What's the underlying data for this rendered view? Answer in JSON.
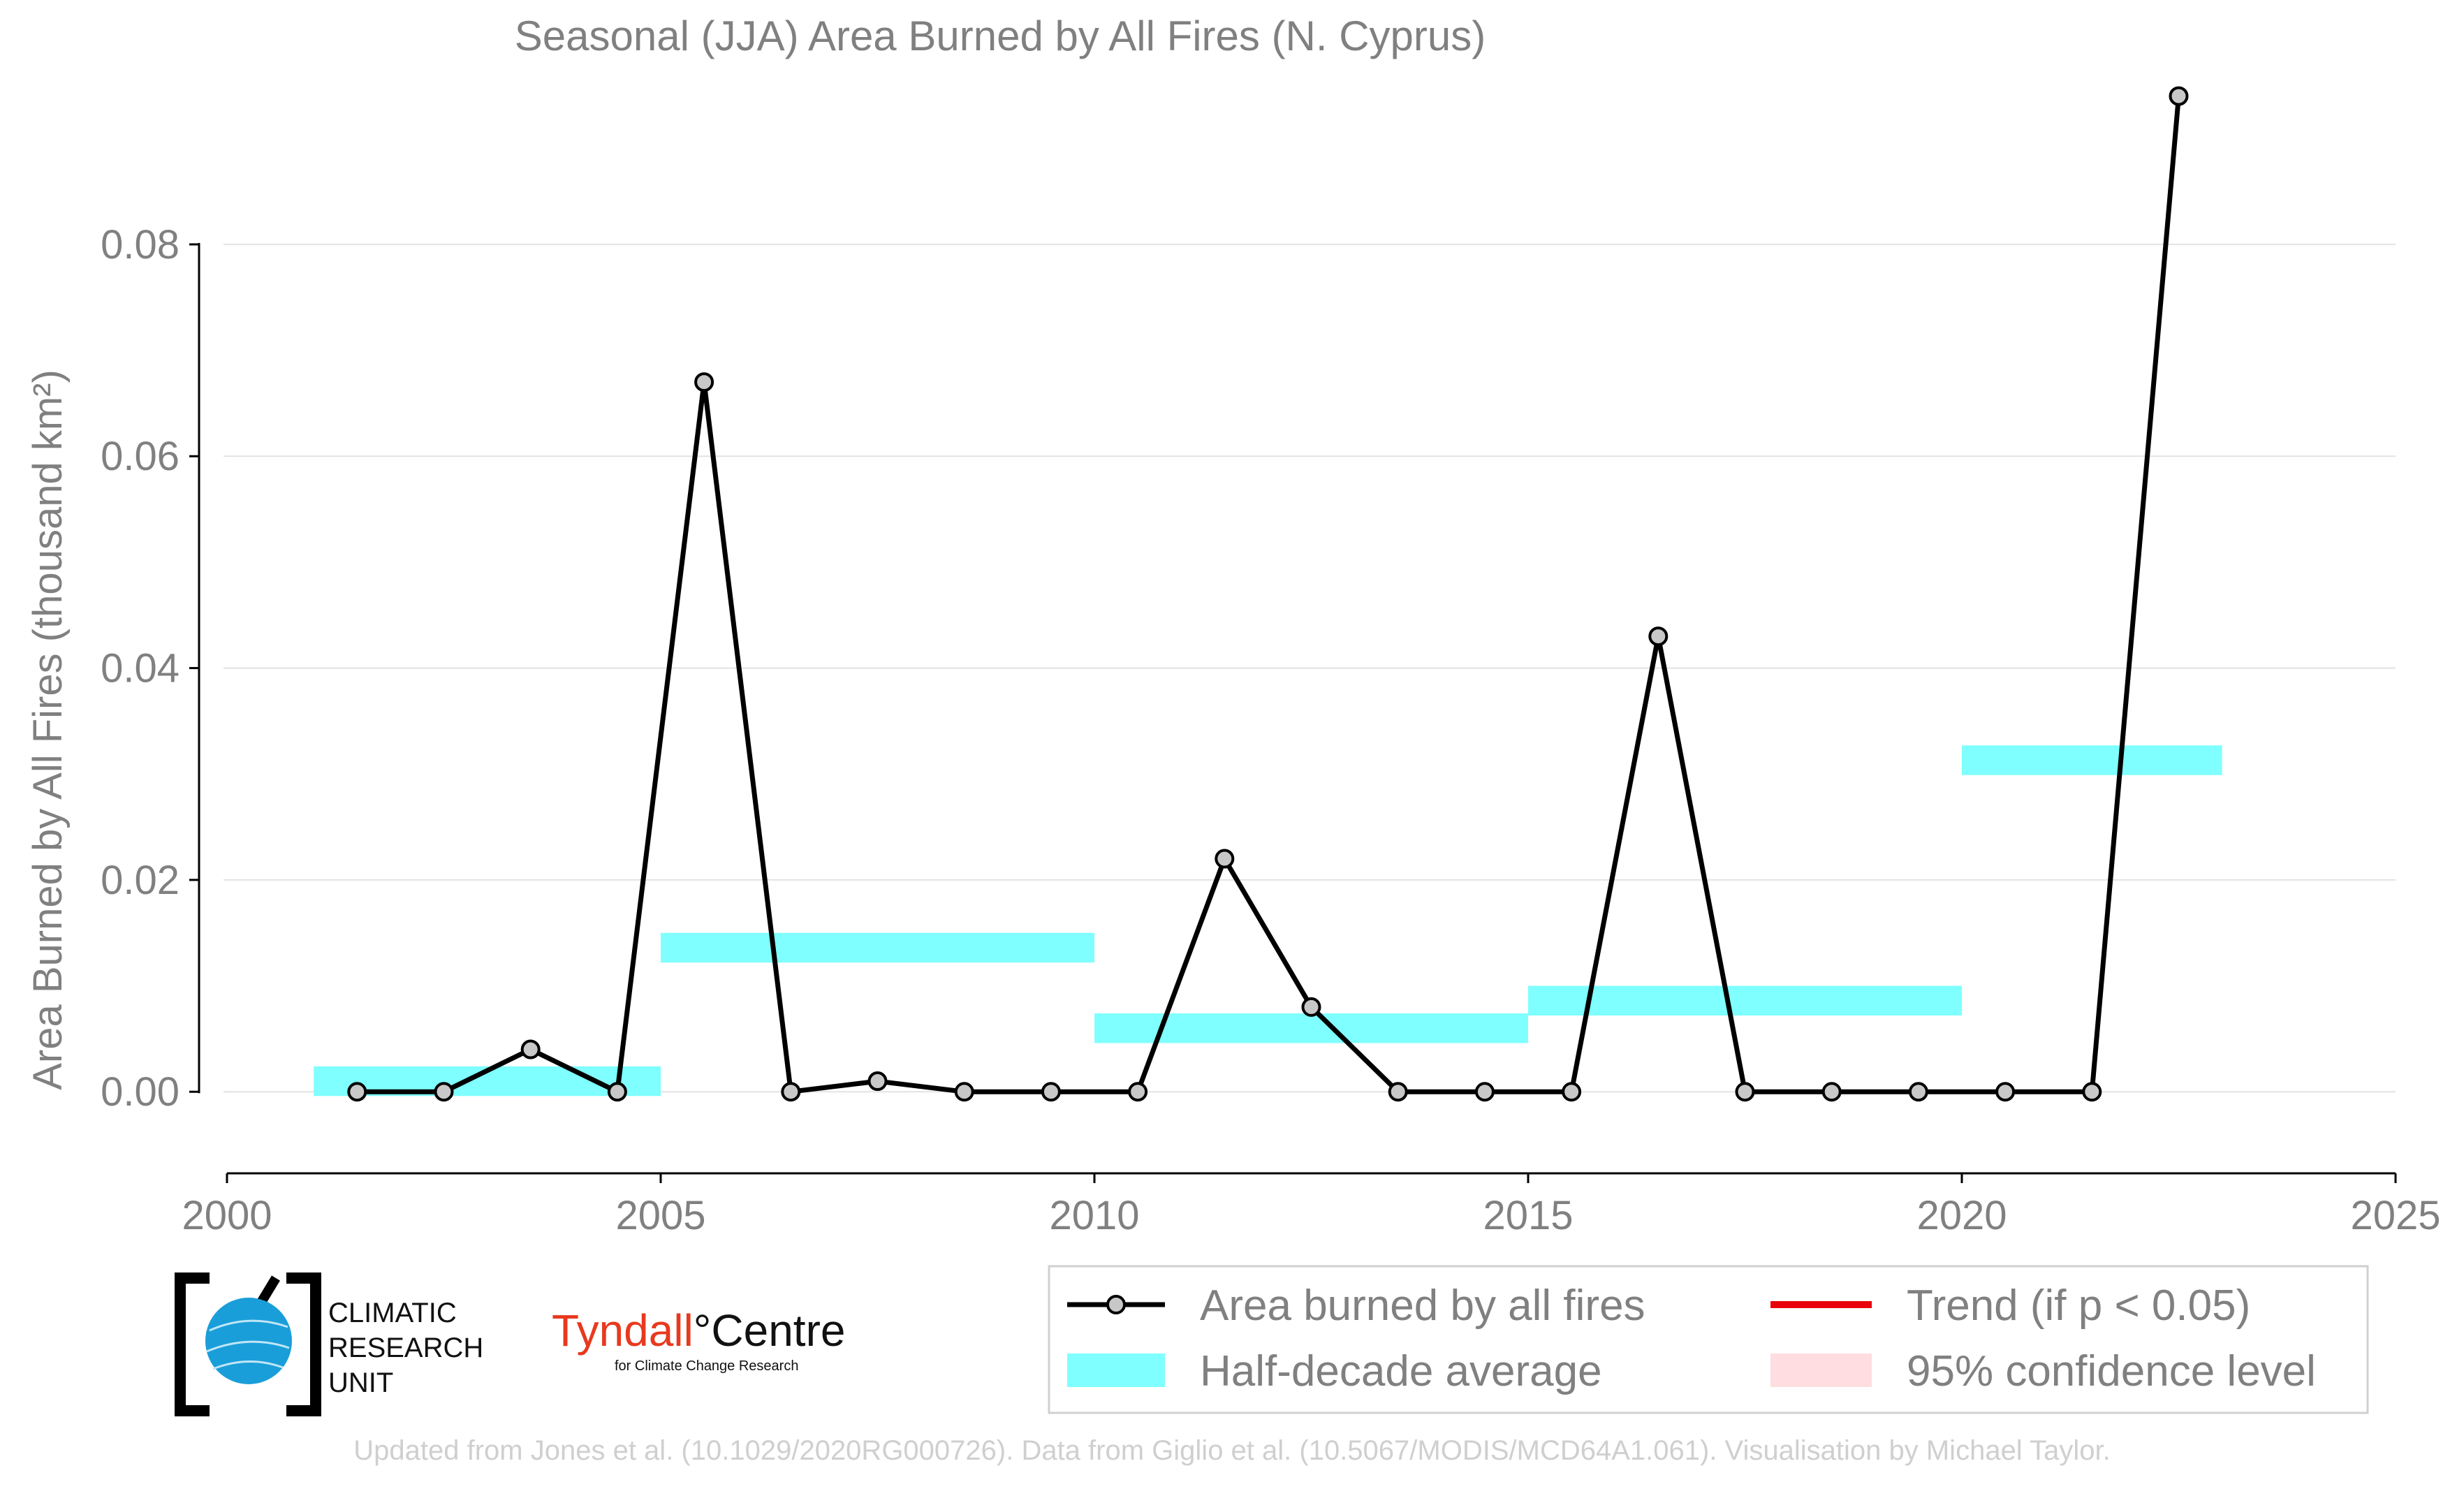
{
  "chart_data": {
    "type": "line",
    "title": "Seasonal (JJA) Area Burned by All Fires (N. Cyprus)",
    "ylabel": "Area Burned by All Fires (thousand km²)",
    "xlabel": "",
    "xlim": [
      2000,
      2025
    ],
    "ylim": [
      -0.0077,
      0.0945
    ],
    "x_ticks": [
      2000,
      2005,
      2010,
      2015,
      2020,
      2025
    ],
    "y_ticks": [
      0.0,
      0.02,
      0.04,
      0.06,
      0.08
    ],
    "x_tick_labels": [
      "2000",
      "2005",
      "2010",
      "2015",
      "2020",
      "2025"
    ],
    "y_tick_labels": [
      "0.00",
      "0.02",
      "0.04",
      "0.06",
      "0.08"
    ],
    "grid": "horizontal",
    "legend_position": "bottom-right",
    "series": [
      {
        "name": "Area burned by all fires",
        "kind": "line-with-markers",
        "color": "#000000",
        "marker_fill": "#c8c8c8",
        "x": [
          2001.5,
          2002.5,
          2003.5,
          2004.5,
          2005.5,
          2006.5,
          2007.5,
          2008.5,
          2009.5,
          2010.5,
          2011.5,
          2012.5,
          2013.5,
          2014.5,
          2015.5,
          2016.5,
          2017.5,
          2018.5,
          2019.5,
          2020.5,
          2021.5,
          2022.5
        ],
        "values": [
          0.0,
          0.0,
          0.004,
          0.0,
          0.067,
          0.0,
          0.001,
          0.0,
          0.0,
          0.0,
          0.022,
          0.008,
          0.0,
          0.0,
          0.0,
          0.043,
          0.0,
          0.0,
          0.0,
          0.0,
          0.0,
          0.094
        ]
      },
      {
        "name": "Half-decade average",
        "kind": "bands",
        "color": "#7fffff",
        "segments": [
          {
            "x0": 2001,
            "x1": 2005,
            "value": 0.001
          },
          {
            "x0": 2005,
            "x1": 2010,
            "value": 0.0136
          },
          {
            "x0": 2010,
            "x1": 2015,
            "value": 0.006
          },
          {
            "x0": 2015,
            "x1": 2020,
            "value": 0.0086
          },
          {
            "x0": 2020,
            "x1": 2023,
            "value": 0.0313
          }
        ]
      }
    ],
    "legend": [
      {
        "label": "Area burned by all fires",
        "symbol": "line-marker",
        "color": "#000000"
      },
      {
        "label": "Trend (if p < 0.05)",
        "symbol": "line",
        "color": "#e8000b"
      },
      {
        "label": "Half-decade average",
        "symbol": "patch",
        "color": "#7fffff"
      },
      {
        "label": "95% confidence level",
        "symbol": "patch",
        "color": "#ffdde0"
      }
    ]
  },
  "logos": {
    "cru_lines": [
      "CLIMATIC",
      "RESEARCH",
      "UNIT"
    ],
    "tyndall_name": "Tyndall",
    "tyndall_degree": "°",
    "tyndall_centre": "Centre",
    "tyndall_sub": "for Climate Change Research"
  },
  "footer": "Updated from Jones et al. (10.1029/2020RG000726). Data from Giglio et al. (10.5067/MODIS/MCD64A1.061). Visualisation by Michael Taylor."
}
